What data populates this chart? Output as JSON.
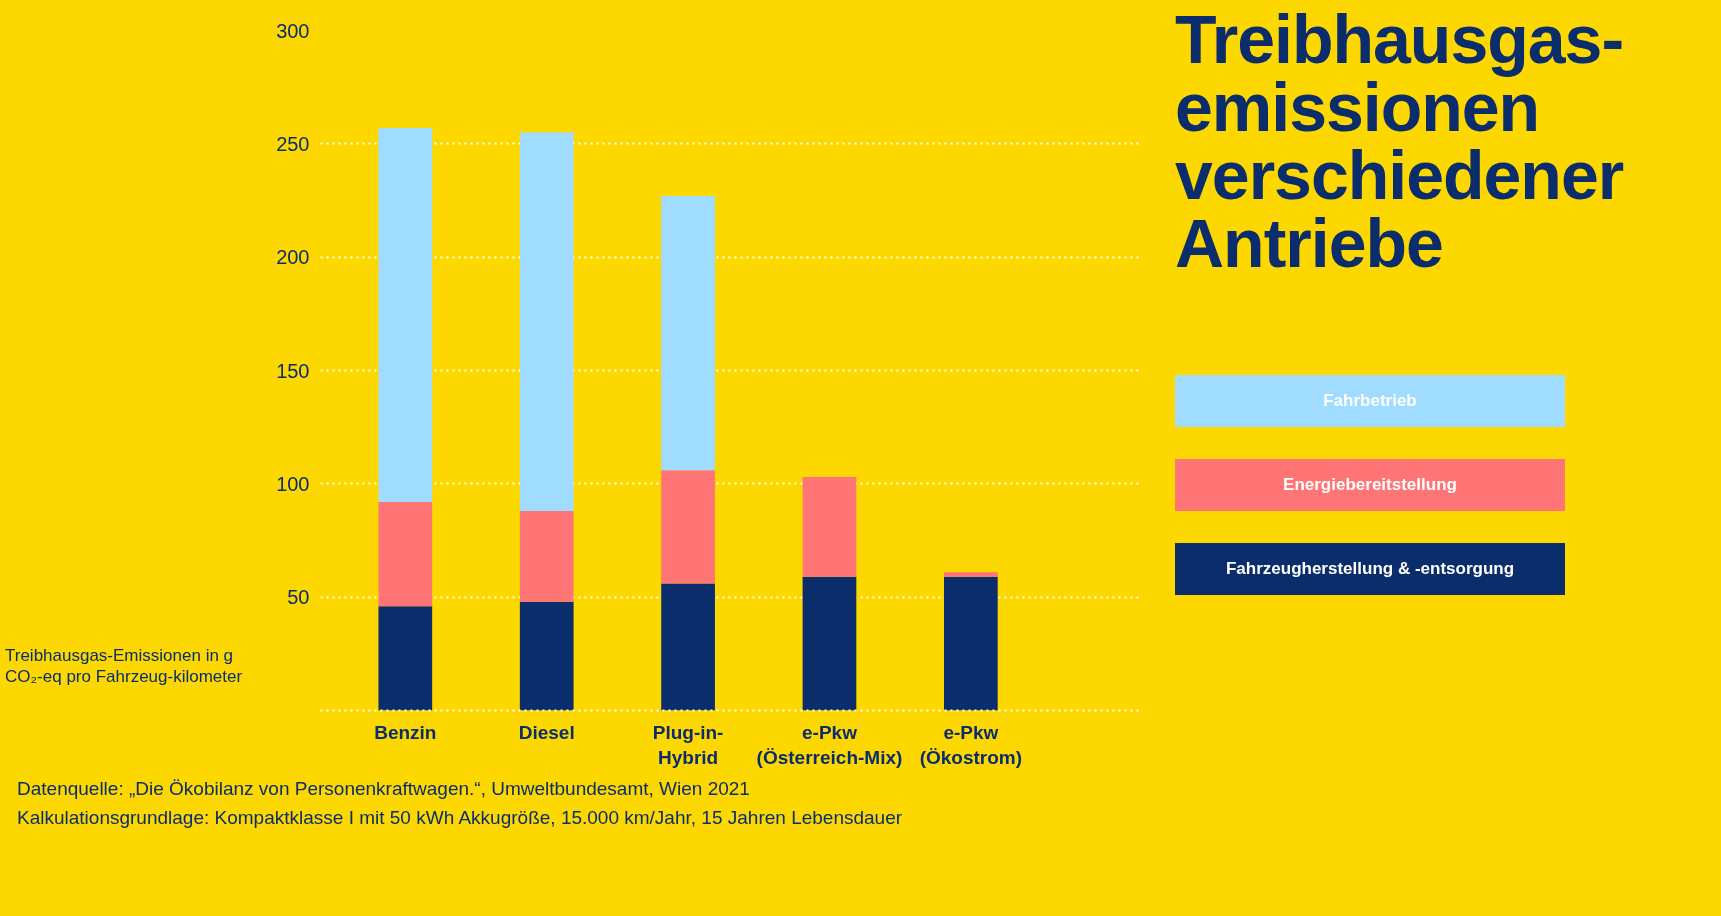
{
  "chart_data": {
    "type": "bar",
    "stacked": true,
    "title": "Treibhausgas-emissionen verschiedener Antriebe",
    "ylabel": "Treibhausgas-Emissionen in g CO₂-eq pro Fahrzeug-kilometer",
    "categories": [
      "Benzin",
      "Diesel",
      "Plug-in-\nHybrid",
      "e-Pkw\n(Österreich-Mix)",
      "e-Pkw\n(Ökostrom)"
    ],
    "series": [
      {
        "name": "Fahrzeugherstellung & -entsorgung",
        "color": "#0b2d6b",
        "values": [
          46,
          48,
          56,
          59,
          59
        ]
      },
      {
        "name": "Energiebereitstellung",
        "color": "#ff7575",
        "values": [
          46,
          40,
          50,
          44,
          2
        ]
      },
      {
        "name": "Fahrbetrieb",
        "color": "#a0dcff",
        "values": [
          165,
          167,
          121,
          0,
          0
        ]
      }
    ],
    "ylim": [
      0,
      300
    ],
    "yticks": [
      {
        "value": 0,
        "label": null
      },
      50,
      100,
      150,
      200,
      250,
      300
    ],
    "grid": "y",
    "legend": "right",
    "annotations": [
      "Datenquelle: „Die Ökobilanz von Personenkraftwagen.“, Umweltbundesamt, Wien 2021",
      "Kalkulationsgrundlage: Kompaktklasse I mit 50 kWh Akkugröße, 15.000 km/Jahr, 15 Jahren Lebensdauer"
    ]
  }
}
